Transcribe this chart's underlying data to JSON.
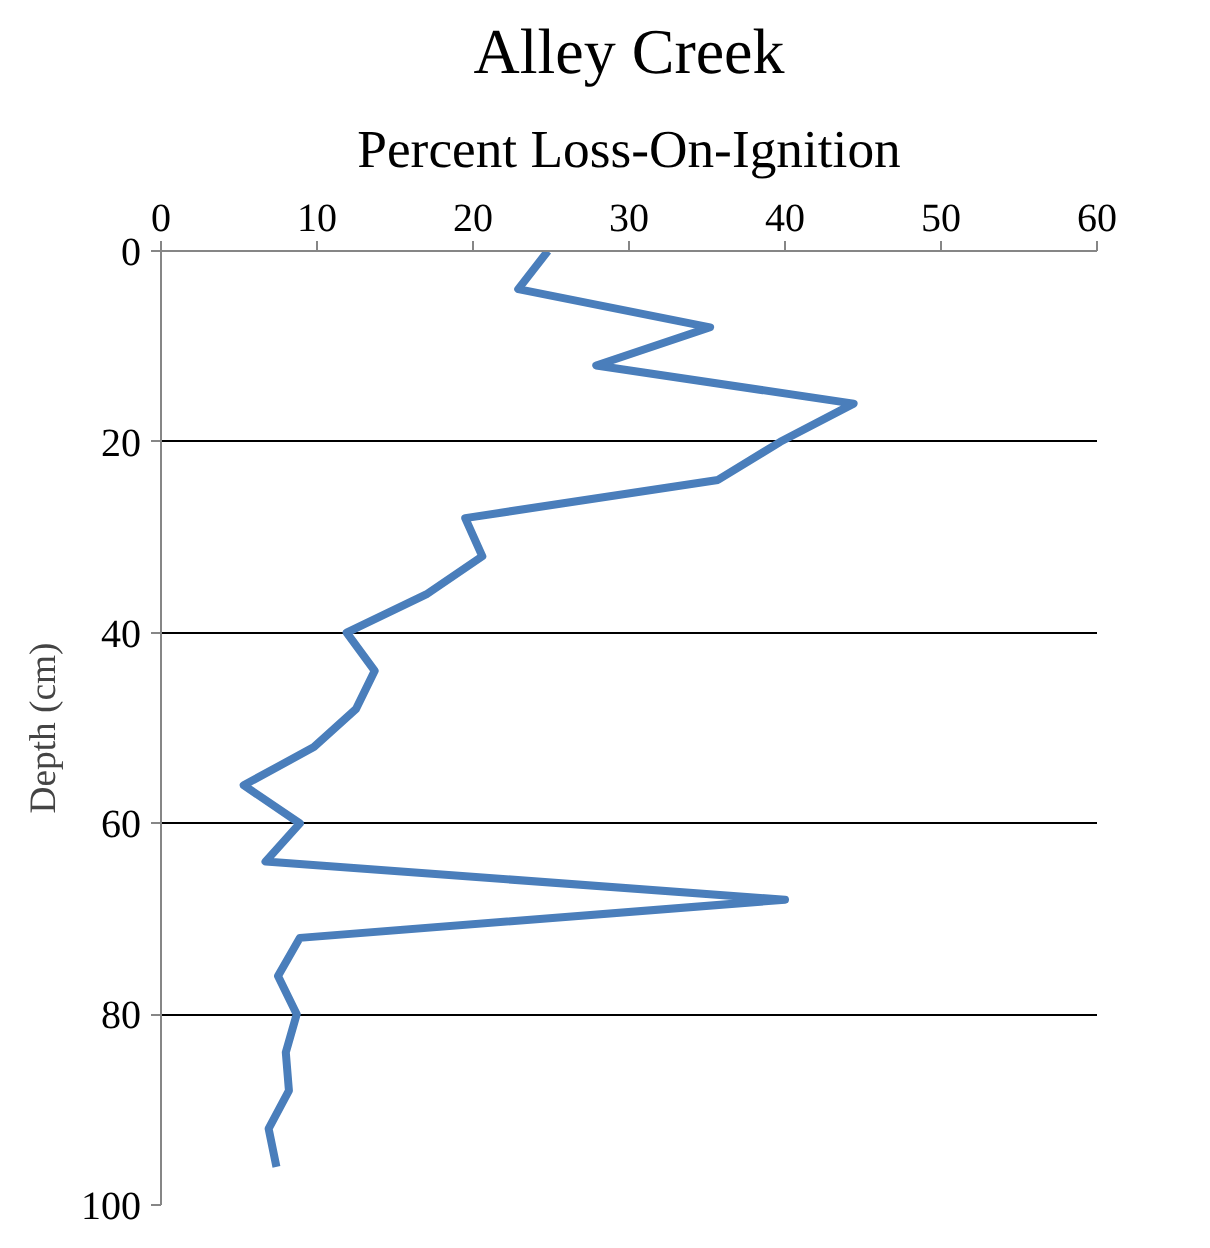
{
  "chart_data": {
    "type": "line",
    "title": "Alley Creek",
    "subtitle": "Percent Loss-On-Ignition",
    "ylabel": "Depth (cm)",
    "x": [
      24.8,
      22.9,
      35.2,
      27.9,
      44.4,
      39.7,
      35.7,
      19.5,
      20.6,
      17.0,
      11.9,
      13.7,
      12.5,
      9.8,
      5.3,
      8.9,
      6.7,
      40.0,
      8.9,
      7.5,
      8.7,
      8.0,
      8.2,
      6.9,
      7.4
    ],
    "series": [
      {
        "color": "#4a7ebb",
        "values": [
          0,
          4,
          8,
          12,
          16,
          20,
          24,
          28,
          32,
          36,
          40,
          44,
          48,
          52,
          56,
          60,
          64,
          68,
          72,
          76,
          80,
          84,
          88,
          92,
          96
        ]
      }
    ],
    "xlim": [
      0,
      60
    ],
    "xticks": [
      0,
      10,
      20,
      30,
      40,
      50,
      60
    ],
    "ylim": [
      100,
      0
    ],
    "yticks": [
      0,
      20,
      40,
      60,
      80,
      100
    ],
    "grid": "y",
    "marker": "none",
    "line_style": "solid"
  }
}
